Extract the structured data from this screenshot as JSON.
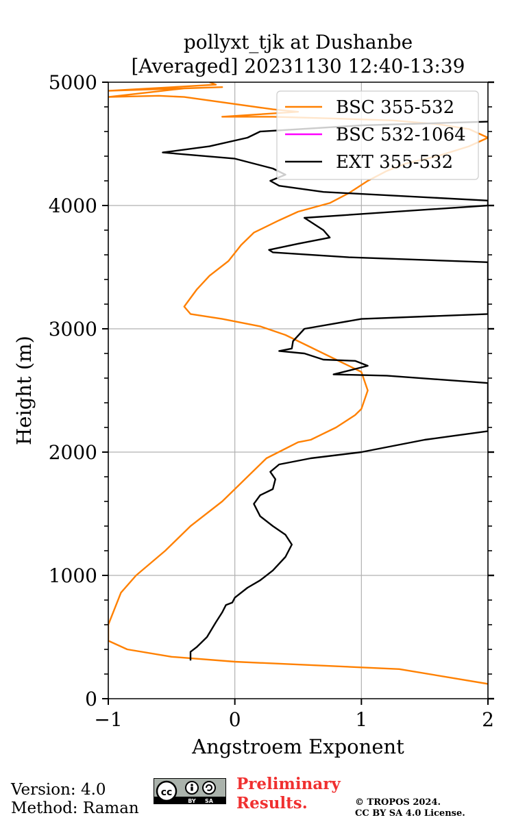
{
  "chart_data": {
    "type": "line",
    "title_line1": "pollyxt_tjk at Dushanbe",
    "title_line2": "[Averaged] 20231130 12:40-13:39",
    "xlabel": "Angstroem Exponent",
    "ylabel": "Height (m)",
    "xlim": [
      -1,
      2
    ],
    "ylim": [
      0,
      5000
    ],
    "x_ticks": [
      -1,
      0,
      1,
      2
    ],
    "x_tick_labels": [
      "−1",
      "0",
      "1",
      "2"
    ],
    "y_ticks": [
      0,
      1000,
      2000,
      3000,
      4000,
      5000
    ],
    "y_tick_labels": [
      "0",
      "1000",
      "2000",
      "3000",
      "4000",
      "5000"
    ],
    "grid": true,
    "legend_position": "top-right",
    "series": [
      {
        "name": "BSC 355-532",
        "color": "#ff8000",
        "points": [
          [
            2.0,
            120
          ],
          [
            1.3,
            240
          ],
          [
            0.0,
            300
          ],
          [
            -0.5,
            340
          ],
          [
            -0.85,
            400
          ],
          [
            -1.0,
            470
          ],
          [
            -1.0,
            600
          ],
          [
            -0.9,
            860
          ],
          [
            -0.78,
            1000
          ],
          [
            -0.55,
            1200
          ],
          [
            -0.35,
            1400
          ],
          [
            -0.1,
            1600
          ],
          [
            0.0,
            1700
          ],
          [
            0.1,
            1800
          ],
          [
            0.25,
            1950
          ],
          [
            0.5,
            2080
          ],
          [
            0.6,
            2100
          ],
          [
            0.8,
            2200
          ],
          [
            0.95,
            2300
          ],
          [
            1.0,
            2350
          ],
          [
            1.05,
            2500
          ],
          [
            1.0,
            2650
          ],
          [
            0.8,
            2750
          ],
          [
            0.6,
            2850
          ],
          [
            0.4,
            2950
          ],
          [
            0.2,
            3020
          ],
          [
            -0.1,
            3080
          ],
          [
            -0.35,
            3120
          ],
          [
            -0.4,
            3180
          ],
          [
            -0.35,
            3250
          ],
          [
            -0.3,
            3320
          ],
          [
            -0.2,
            3430
          ],
          [
            -0.05,
            3550
          ],
          [
            0.05,
            3680
          ],
          [
            0.15,
            3780
          ],
          [
            0.35,
            3880
          ],
          [
            0.5,
            3950
          ],
          [
            0.75,
            4020
          ],
          [
            0.9,
            4100
          ],
          [
            1.05,
            4200
          ],
          [
            1.2,
            4280
          ],
          [
            1.35,
            4340
          ],
          [
            1.6,
            4400
          ],
          [
            1.85,
            4480
          ],
          [
            2.0,
            4550
          ],
          [
            1.85,
            4620
          ],
          [
            1.6,
            4660
          ],
          [
            1.25,
            4690
          ],
          [
            0.8,
            4705
          ],
          [
            0.3,
            4720
          ],
          [
            -0.1,
            4720
          ],
          [
            0.2,
            4740
          ],
          [
            0.5,
            4760
          ],
          [
            0.3,
            4780
          ],
          [
            -0.4,
            4880
          ],
          [
            -0.6,
            4890
          ],
          [
            -1.0,
            4880
          ],
          [
            -0.4,
            4950
          ],
          [
            -0.1,
            4960
          ],
          [
            -1.0,
            4930
          ],
          [
            -0.15,
            4980
          ],
          [
            -0.2,
            5000
          ]
        ]
      },
      {
        "name": "BSC 532-1064",
        "color": "#ff00ff",
        "points": []
      },
      {
        "name": "EXT 355-532",
        "color": "#000000",
        "points": [
          [
            -0.35,
            310
          ],
          [
            -0.35,
            380
          ],
          [
            -0.3,
            420
          ],
          [
            -0.22,
            500
          ],
          [
            -0.15,
            620
          ],
          [
            -0.1,
            700
          ],
          [
            -0.07,
            760
          ],
          [
            -0.02,
            780
          ],
          [
            0.0,
            820
          ],
          [
            0.1,
            900
          ],
          [
            0.2,
            960
          ],
          [
            0.3,
            1040
          ],
          [
            0.4,
            1150
          ],
          [
            0.45,
            1250
          ],
          [
            0.4,
            1330
          ],
          [
            0.3,
            1400
          ],
          [
            0.2,
            1480
          ],
          [
            0.15,
            1580
          ],
          [
            0.2,
            1650
          ],
          [
            0.3,
            1700
          ],
          [
            0.32,
            1780
          ],
          [
            0.28,
            1840
          ],
          [
            0.35,
            1900
          ],
          [
            0.6,
            1950
          ],
          [
            1.0,
            2000
          ],
          [
            1.25,
            2050
          ],
          [
            1.5,
            2100
          ],
          [
            2.0,
            2170
          ],
          [
            2.0,
            2560
          ],
          [
            1.2,
            2620
          ],
          [
            0.78,
            2630
          ],
          [
            1.05,
            2700
          ],
          [
            0.95,
            2740
          ],
          [
            0.7,
            2750
          ],
          [
            0.55,
            2800
          ],
          [
            0.35,
            2820
          ],
          [
            0.45,
            2840
          ],
          [
            0.46,
            2900
          ],
          [
            0.55,
            3000
          ],
          [
            1.0,
            3080
          ],
          [
            2.0,
            3120
          ],
          [
            2.0,
            3540
          ],
          [
            0.9,
            3580
          ],
          [
            0.3,
            3620
          ],
          [
            0.27,
            3640
          ],
          [
            0.5,
            3690
          ],
          [
            0.75,
            3740
          ],
          [
            0.7,
            3800
          ],
          [
            0.55,
            3900
          ],
          [
            2.0,
            4000
          ],
          [
            2.0,
            4040
          ],
          [
            0.7,
            4110
          ],
          [
            0.35,
            4160
          ],
          [
            0.28,
            4200
          ],
          [
            0.4,
            4250
          ],
          [
            0.3,
            4300
          ],
          [
            0.0,
            4380
          ],
          [
            -0.57,
            4430
          ],
          [
            -0.2,
            4480
          ],
          [
            0.1,
            4550
          ],
          [
            0.2,
            4600
          ],
          [
            1.0,
            4650
          ],
          [
            2.0,
            4680
          ]
        ]
      }
    ]
  },
  "footer": {
    "version": "Version: 4.0",
    "method": "Method: Raman",
    "preliminary_line1": "Preliminary",
    "preliminary_line2": "Results.",
    "copyright_line1": "© TROPOS 2024.",
    "copyright_line2": "CC BY SA 4.0 License.",
    "license_badge": "cc-by-sa-icon"
  }
}
